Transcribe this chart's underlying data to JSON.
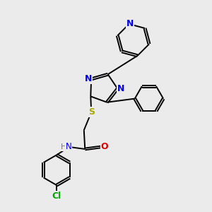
{
  "background_color": "#ebebeb",
  "bond_color": "#000000",
  "atom_colors": {
    "N": "#0000ee",
    "O": "#dd0000",
    "S": "#aaaa00",
    "Cl": "#00aa00",
    "H": "#777777",
    "C": "#000000"
  },
  "figsize": [
    3.0,
    3.0
  ],
  "dpi": 100
}
